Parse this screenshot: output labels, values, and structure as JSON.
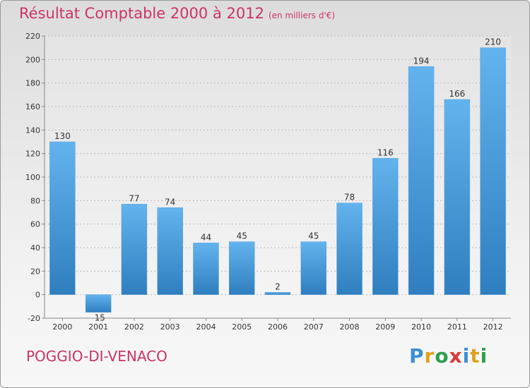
{
  "header": {
    "title": "Résultat Comptable 2000 à 2012",
    "subtitle": "(en milliers d'€)"
  },
  "footer": {
    "commune": "POGGIO-DI-VENACO",
    "logo": "Proxiti"
  },
  "colors": {
    "accent": "#cc3366",
    "bar_top": "#63b3ee",
    "bar_bottom": "#2f7ebf"
  },
  "chart_data": {
    "type": "bar",
    "title": "Résultat Comptable 2000 à 2012",
    "subtitle": "(en milliers d'€)",
    "categories": [
      "2000",
      "2001",
      "2002",
      "2003",
      "2004",
      "2005",
      "2006",
      "2007",
      "2008",
      "2009",
      "2010",
      "2011",
      "2012"
    ],
    "values": [
      130,
      -15,
      77,
      74,
      44,
      45,
      2,
      45,
      78,
      116,
      194,
      166,
      210
    ],
    "data_labels": [
      "130",
      "-15",
      "77",
      "74",
      "44",
      "45",
      "2",
      "45",
      "78",
      "116",
      "194",
      "166",
      "210"
    ],
    "ylim": [
      -20,
      220
    ],
    "yticks": [
      -20,
      0,
      20,
      40,
      60,
      80,
      100,
      120,
      140,
      160,
      180,
      200,
      220
    ],
    "grid": true
  }
}
